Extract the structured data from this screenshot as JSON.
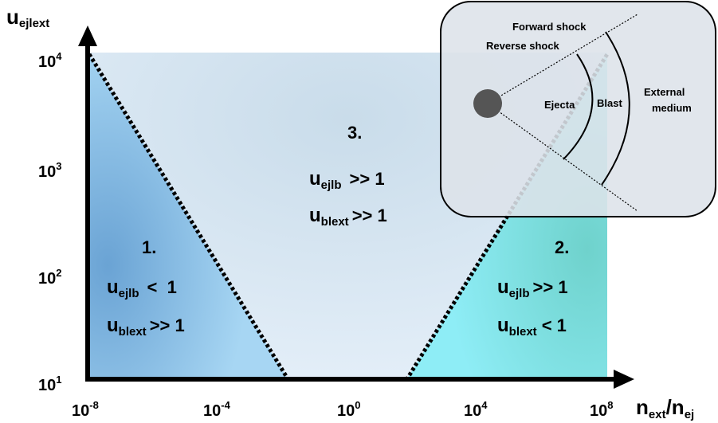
{
  "y_axis": {
    "label": {
      "main": "u",
      "sub": "ejlext"
    },
    "ticks": [
      {
        "base": "10",
        "exp": "1"
      },
      {
        "base": "10",
        "exp": "2"
      },
      {
        "base": "10",
        "exp": "3"
      },
      {
        "base": "10",
        "exp": "4"
      }
    ]
  },
  "x_axis": {
    "label": {
      "main": "n",
      "sub": "ext",
      "main2": "/n",
      "sub2": "ej"
    },
    "ticks": [
      {
        "base": "10",
        "exp": "-8"
      },
      {
        "base": "10",
        "exp": "-4"
      },
      {
        "base": "10",
        "exp": "0"
      },
      {
        "base": "10",
        "exp": "4"
      },
      {
        "base": "10",
        "exp": "8"
      }
    ]
  },
  "regions": [
    {
      "number": "1.",
      "lines": [
        {
          "main": "u",
          "sub": "ejlb",
          "relation": "<  1"
        },
        {
          "main": "u",
          "sub": "blext",
          "relation": ">> 1"
        }
      ]
    },
    {
      "number": "2.",
      "lines": [
        {
          "main": "u",
          "sub": "ejlb",
          "relation": ">> 1"
        },
        {
          "main": "u",
          "sub": "blext",
          "relation": "< 1"
        }
      ]
    },
    {
      "number": "3.",
      "lines": [
        {
          "main": "u",
          "sub": "ejlb",
          "relation": ">> 1"
        },
        {
          "main": "u",
          "sub": "blext",
          "relation": ">> 1"
        }
      ]
    }
  ],
  "inset": {
    "forward_shock": "Forward shock",
    "reverse_shock": "Reverse shock",
    "ejecta": "Ejecta",
    "blast": "Blast",
    "external_medium": [
      "External",
      "medium"
    ]
  }
}
